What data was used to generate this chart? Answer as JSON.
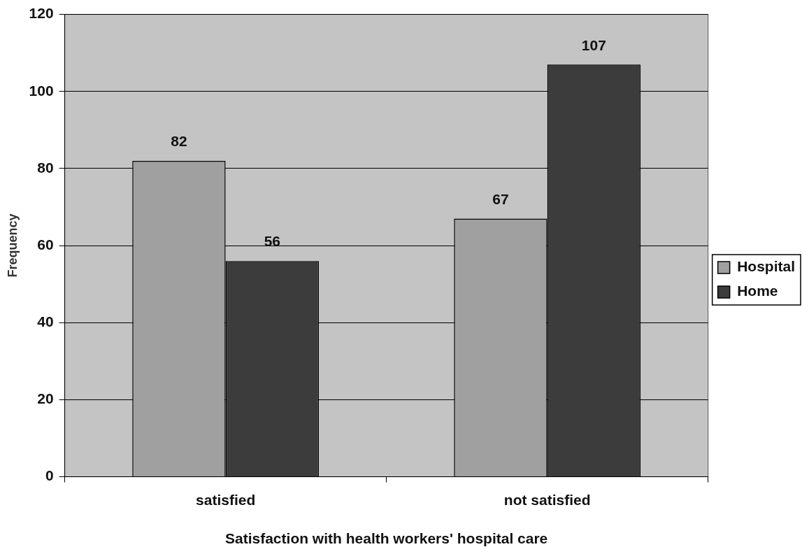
{
  "chart_data": {
    "type": "bar",
    "xlabel": "Satisfaction with health workers' hospital care",
    "ylabel": "Frequency",
    "categories": [
      "satisfied",
      "not satisfied"
    ],
    "series": [
      {
        "name": "Hospital",
        "color": "#a0a0a0",
        "values": [
          82,
          67
        ]
      },
      {
        "name": "Home",
        "color": "#3c3c3c",
        "values": [
          56,
          107
        ]
      }
    ],
    "ylim": [
      0,
      120
    ],
    "yticks": [
      0,
      20,
      40,
      60,
      80,
      100,
      120
    ],
    "grid": "y",
    "legend": "right",
    "data_labels": true
  }
}
